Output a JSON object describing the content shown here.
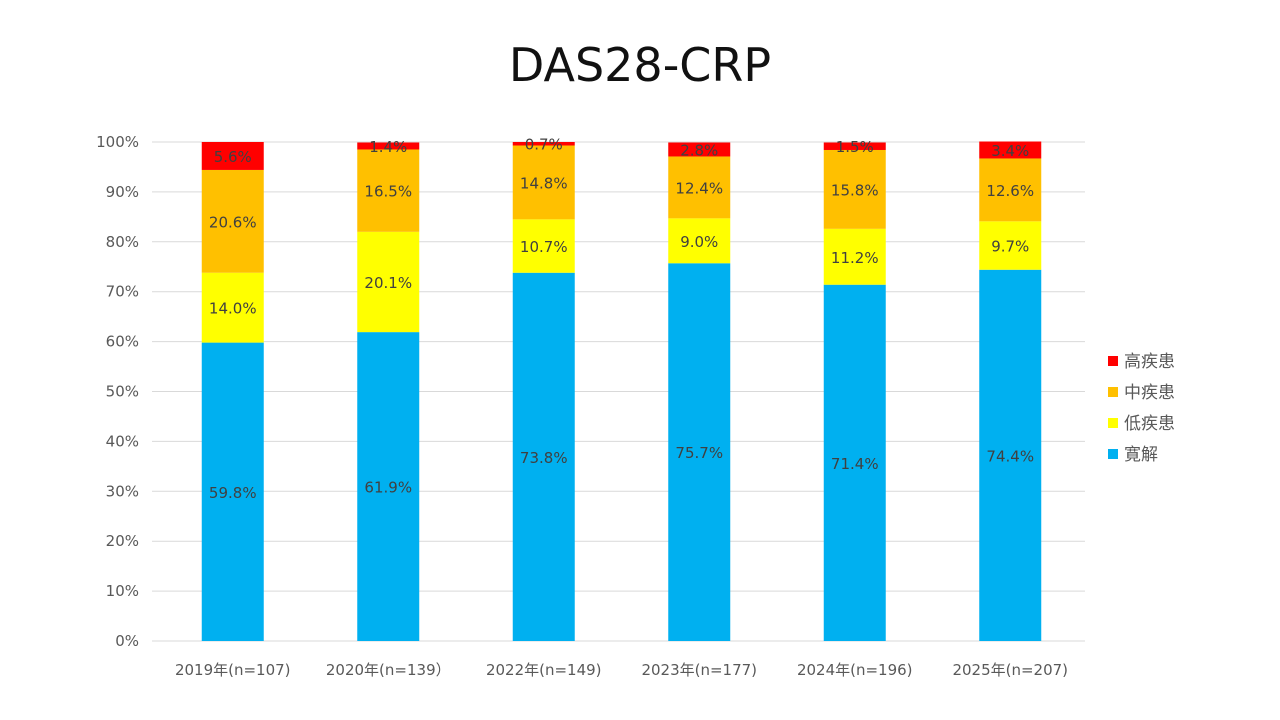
{
  "chart_data": {
    "type": "bar",
    "stacked": true,
    "title": "DAS28-CRP",
    "xlabel": "",
    "ylabel": "",
    "ylim": [
      0,
      100
    ],
    "yticks": [
      "0%",
      "10%",
      "20%",
      "30%",
      "40%",
      "50%",
      "60%",
      "70%",
      "80%",
      "90%",
      "100%"
    ],
    "grid": true,
    "legend_position": "right",
    "categories": [
      "2019年(n=107)",
      "2020年(n=139）",
      "2022年(n=149)",
      "2023年(n=177)",
      "2024年(n=196)",
      "2025年(n=207)"
    ],
    "series": [
      {
        "name": "寛解",
        "color": "#00B0F0",
        "values": [
          59.8,
          61.9,
          73.8,
          75.7,
          71.4,
          74.4
        ]
      },
      {
        "name": "低疾患",
        "color": "#FFFF00",
        "values": [
          14.0,
          20.1,
          10.7,
          9.0,
          11.2,
          9.7
        ]
      },
      {
        "name": "中疾患",
        "color": "#FFC000",
        "values": [
          20.6,
          16.5,
          14.8,
          12.4,
          15.8,
          12.6
        ]
      },
      {
        "name": "高疾患",
        "color": "#FF0000",
        "values": [
          5.6,
          1.4,
          0.7,
          2.8,
          1.5,
          3.4
        ]
      }
    ],
    "legend_order": [
      "高疾患",
      "中疾患",
      "低疾患",
      "寛解"
    ],
    "data_label_suffix": "%"
  }
}
